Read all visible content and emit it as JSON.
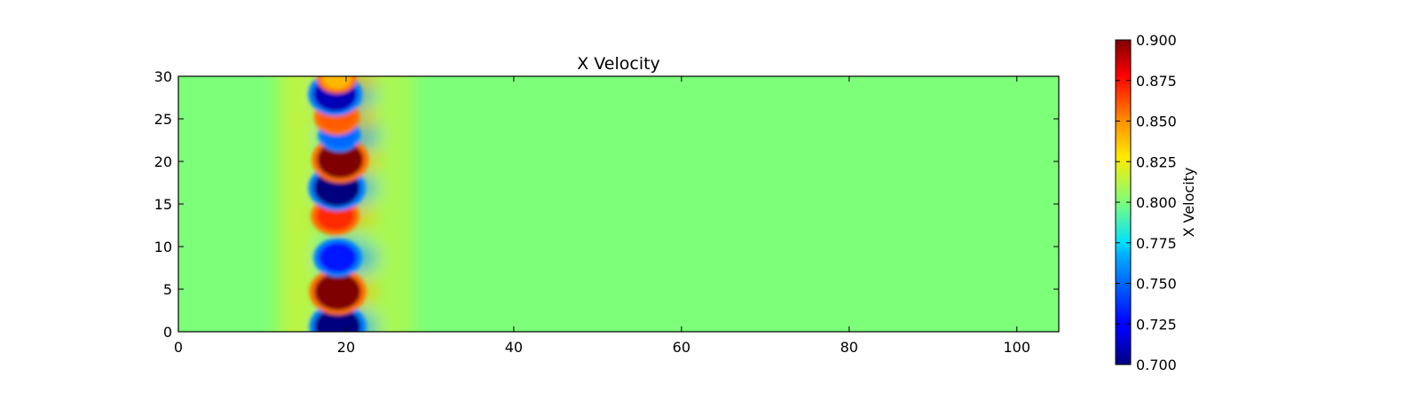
{
  "chart_data": {
    "type": "heatmap",
    "title": "X Velocity",
    "xlabel": "",
    "ylabel": "",
    "xlim": [
      0,
      105
    ],
    "ylim": [
      0,
      30
    ],
    "x_ticks": [
      0,
      20,
      40,
      60,
      80,
      100
    ],
    "y_ticks": [
      0,
      5,
      10,
      15,
      20,
      25,
      30
    ],
    "colormap": "jet",
    "background_value": 0.8,
    "colorbar": {
      "label": "X Velocity",
      "range": [
        0.7,
        0.9
      ],
      "ticks": [
        "0.700",
        "0.725",
        "0.750",
        "0.775",
        "0.800",
        "0.825",
        "0.850",
        "0.875",
        "0.900"
      ]
    },
    "features": [
      {
        "x": 19.0,
        "y": 0.6,
        "value": 0.7
      },
      {
        "x": 19.0,
        "y": 4.7,
        "value": 0.9
      },
      {
        "x": 19.0,
        "y": 8.7,
        "value": 0.73
      },
      {
        "x": 18.7,
        "y": 13.6,
        "value": 0.87
      },
      {
        "x": 18.9,
        "y": 16.9,
        "value": 0.7
      },
      {
        "x": 19.3,
        "y": 20.2,
        "value": 0.9
      },
      {
        "x": 19.2,
        "y": 23.1,
        "value": 0.75
      },
      {
        "x": 18.9,
        "y": 25.2,
        "value": 0.86
      },
      {
        "x": 18.7,
        "y": 27.9,
        "value": 0.71
      },
      {
        "x": 18.9,
        "y": 29.8,
        "value": 0.84
      }
    ]
  }
}
